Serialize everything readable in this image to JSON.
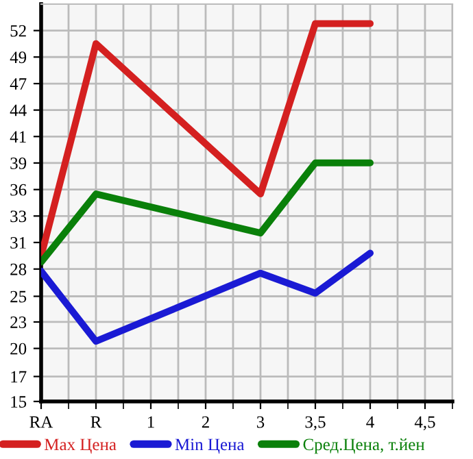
{
  "chart_data": {
    "type": "line",
    "categories": [
      "RA",
      "R",
      "1",
      "2",
      "3",
      "3,5",
      "4",
      "4,5"
    ],
    "series": [
      {
        "name": "Max Цена",
        "color": "#d42020",
        "values": [
          29.5,
          50.7,
          null,
          null,
          35.7,
          52.7,
          52.7,
          null
        ]
      },
      {
        "name": "Min Цена",
        "color": "#1a1ad4",
        "values": [
          28.0,
          21.0,
          null,
          null,
          27.8,
          25.8,
          29.8,
          null
        ]
      },
      {
        "name": "Сред.Цена, т.йен",
        "color": "#0a800a",
        "values": [
          28.9,
          35.7,
          null,
          null,
          31.8,
          38.8,
          38.8,
          null
        ]
      }
    ],
    "ylim": [
      15,
      54.64
    ],
    "yticks": [
      15,
      {
        "value": 17.49,
        "label": "17"
      },
      {
        "value": 20.29,
        "label": "20"
      },
      {
        "value": 22.93,
        "label": "23"
      },
      {
        "value": 25.49,
        "label": "25"
      },
      {
        "value": 28.21,
        "label": "28"
      },
      {
        "value": 30.86,
        "label": "31"
      },
      {
        "value": 33.5,
        "label": "33"
      },
      {
        "value": 36.14,
        "label": "36"
      },
      {
        "value": 38.79,
        "label": "39"
      },
      {
        "value": 41.43,
        "label": "41"
      },
      {
        "value": 44.07,
        "label": "44"
      },
      {
        "value": 46.71,
        "label": "47"
      },
      {
        "value": 49.36,
        "label": "49"
      },
      52
    ],
    "grid": true,
    "legend": "bottom",
    "marker": "none",
    "line_style": "solid"
  }
}
